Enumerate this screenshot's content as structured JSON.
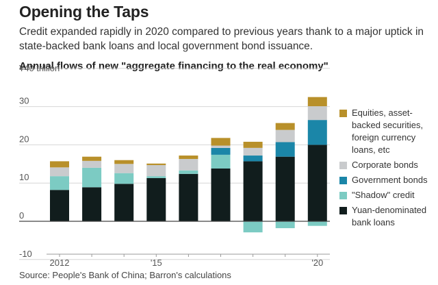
{
  "header": {
    "title": "Opening the Taps",
    "subtitle": "Credit expanded rapidly in 2020 compared to previous years thank to a major uptick in state-backed bank loans and local government bond issuance.",
    "chart_title": "Annual flows of new \"aggregate financing to the real economy\"",
    "source": "Source: People's Bank of China; Barron's calculations"
  },
  "chart_data": {
    "type": "bar",
    "stacked": true,
    "unit_label": "¥40 trillion",
    "ylim": [
      -10,
      40
    ],
    "yticks": [
      "¥40 trillion",
      "30",
      "20",
      "10",
      "0",
      "-10"
    ],
    "ytick_values": [
      40,
      30,
      20,
      10,
      0,
      -10
    ],
    "categories": [
      2012,
      2013,
      2014,
      2015,
      2016,
      2017,
      2018,
      2019,
      2020
    ],
    "xtick_labels": [
      "2012",
      "",
      "",
      "'15",
      "",
      "",
      "",
      "",
      "'20"
    ],
    "grid": true,
    "legend_position": "right",
    "series": [
      {
        "name": "Yuan-denominated bank loans",
        "color": "#111d1d",
        "values": [
          8.2,
          8.9,
          9.8,
          11.3,
          12.4,
          13.8,
          15.7,
          16.9,
          20.0
        ]
      },
      {
        "name": "\"Shadow\" credit",
        "color": "#7ccbc3",
        "values": [
          3.6,
          5.1,
          2.8,
          0.5,
          0.9,
          3.6,
          -2.9,
          -1.8,
          -1.2
        ]
      },
      {
        "name": "Government bonds",
        "color": "#1b86a8",
        "values": [
          0,
          0,
          0,
          0,
          0,
          1.8,
          1.5,
          3.8,
          6.5
        ]
      },
      {
        "name": "Corporate bonds",
        "color": "#c9cbcd",
        "values": [
          2.3,
          1.8,
          2.4,
          2.9,
          3.0,
          0.6,
          2.0,
          3.2,
          3.6
        ]
      },
      {
        "name": "Equities, asset-backed securities, foreign currency loans, etc",
        "color": "#b8902a",
        "values": [
          1.6,
          1.1,
          1.0,
          0.4,
          0.9,
          2.0,
          1.6,
          1.8,
          2.4
        ]
      }
    ],
    "legend_order": [
      4,
      3,
      2,
      1,
      0
    ]
  }
}
